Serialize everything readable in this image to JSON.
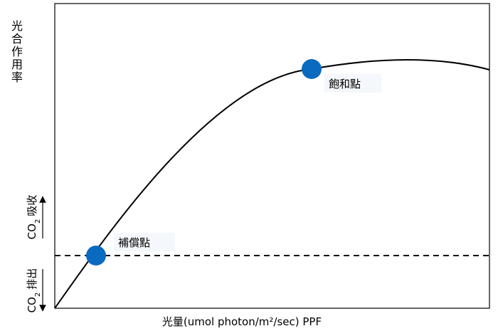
{
  "y_axis_label": "光合作用率",
  "x_axis_label": "光量(umol photon/m²/sec) PPF",
  "co2_uptake": {
    "prefix": "CO",
    "subscript": "2",
    "text": "吸收"
  },
  "co2_release": {
    "prefix": "CO",
    "subscript": "2",
    "text": "排出"
  },
  "compensation_label": "補償點",
  "saturation_label": "飽和點"
}
